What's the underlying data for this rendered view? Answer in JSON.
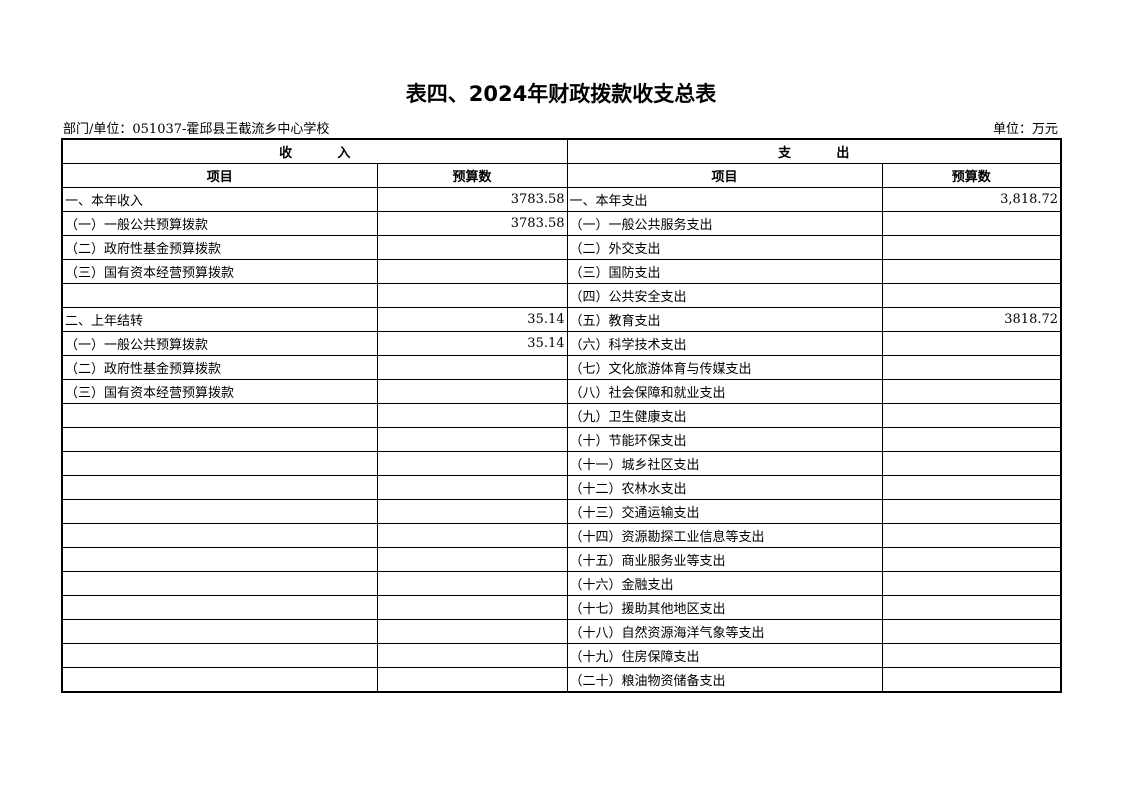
{
  "title": "表四、2024年财政拨款收支总表",
  "department": "部门/单位：051037-霍邱县王截流乡中心学校",
  "unit": "单位：万元",
  "header": {
    "income": "收          入",
    "expense": "支          出",
    "item": "项目",
    "budget": "预算数"
  },
  "rows": [
    {
      "in_item": "一、本年收入",
      "in_val": "3783.58",
      "out_item": "一、本年支出",
      "out_val": "3,818.72"
    },
    {
      "in_item": "（一）一般公共预算拨款",
      "in_val": "3783.58",
      "out_item": "（一）一般公共服务支出",
      "out_val": ""
    },
    {
      "in_item": "（二）政府性基金预算拨款",
      "in_val": "",
      "out_item": "（二）外交支出",
      "out_val": ""
    },
    {
      "in_item": "（三）国有资本经营预算拨款",
      "in_val": "",
      "out_item": "（三）国防支出",
      "out_val": ""
    },
    {
      "in_item": "",
      "in_val": "",
      "out_item": "（四）公共安全支出",
      "out_val": ""
    },
    {
      "in_item": "二、上年结转",
      "in_val": "35.14",
      "out_item": "（五）教育支出",
      "out_val": "3818.72"
    },
    {
      "in_item": "（一）一般公共预算拨款",
      "in_val": "35.14",
      "out_item": "（六）科学技术支出",
      "out_val": ""
    },
    {
      "in_item": "（二）政府性基金预算拨款",
      "in_val": "",
      "out_item": "（七）文化旅游体育与传媒支出",
      "out_val": ""
    },
    {
      "in_item": "（三）国有资本经营预算拨款",
      "in_val": "",
      "out_item": "（八）社会保障和就业支出",
      "out_val": ""
    },
    {
      "in_item": "",
      "in_val": "",
      "out_item": "（九）卫生健康支出",
      "out_val": ""
    },
    {
      "in_item": "",
      "in_val": "",
      "out_item": "（十）节能环保支出",
      "out_val": ""
    },
    {
      "in_item": "",
      "in_val": "",
      "out_item": "（十一）城乡社区支出",
      "out_val": ""
    },
    {
      "in_item": "",
      "in_val": "",
      "out_item": "（十二）农林水支出",
      "out_val": ""
    },
    {
      "in_item": "",
      "in_val": "",
      "out_item": "（十三）交通运输支出",
      "out_val": ""
    },
    {
      "in_item": "",
      "in_val": "",
      "out_item": "（十四）资源勘探工业信息等支出",
      "out_val": ""
    },
    {
      "in_item": "",
      "in_val": "",
      "out_item": "（十五）商业服务业等支出",
      "out_val": ""
    },
    {
      "in_item": "",
      "in_val": "",
      "out_item": "（十六）金融支出",
      "out_val": ""
    },
    {
      "in_item": "",
      "in_val": "",
      "out_item": "（十七）援助其他地区支出",
      "out_val": ""
    },
    {
      "in_item": "",
      "in_val": "",
      "out_item": "（十八）自然资源海洋气象等支出",
      "out_val": ""
    },
    {
      "in_item": "",
      "in_val": "",
      "out_item": "（十九）住房保障支出",
      "out_val": ""
    },
    {
      "in_item": "",
      "in_val": "",
      "out_item": "（二十）粮油物资储备支出",
      "out_val": ""
    }
  ]
}
